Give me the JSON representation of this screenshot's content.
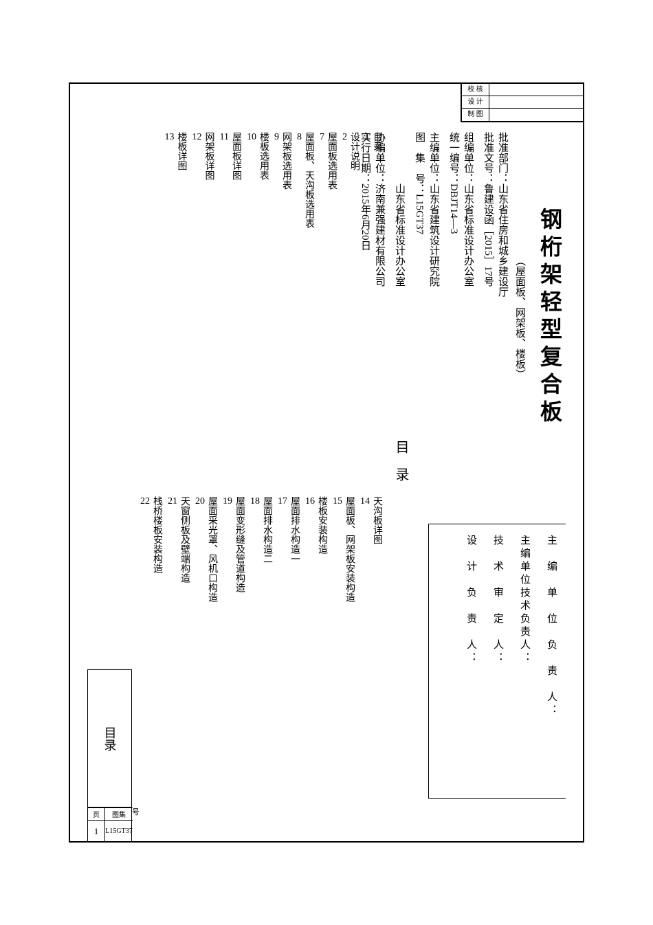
{
  "approval": {
    "row1_label": "校   核",
    "row2_label": "设   计",
    "row3_label": "制   图"
  },
  "title": {
    "main": "钢桁架轻型复合板",
    "sub": "（屋面板、网架板、楼板）"
  },
  "info": {
    "dept_label": "批准部门：",
    "dept_val": "山东省住房和城乡建设厅",
    "doc_label": "批准文号：",
    "doc_val": "鲁建设函［2015］17号",
    "org_label": "组编单位：",
    "org_val": "山东省标准设计办公室",
    "unicode_label": "统一编号：",
    "unicode_val": "DBJT14—3",
    "main_label": "主编单位：",
    "main_val1": "山东省建筑设计研究院",
    "main_val2": "山东省标准设计办公室",
    "atlas_label": "图　集　号：",
    "atlas_val": "L15GT37",
    "coop_label": "协编单位：",
    "coop_val": "济南兼强建材有限公司",
    "date_label": "实行日期：",
    "date_val": "2015年6月20日"
  },
  "sig": {
    "s1": "主　编　单　位　负　责　人：",
    "s2": "主编单位技术负责人：",
    "s3": "技　术　审　定　人：",
    "s4": "设　计　负　责　人："
  },
  "toc_heading": "目录",
  "toc": {
    "left": [
      {
        "label": "目录",
        "page": "1"
      },
      {
        "label": "设计说明",
        "page": "2"
      },
      {
        "label": "屋面板选用表",
        "page": "7"
      },
      {
        "label": "屋面板、天沟板选用表",
        "page": "8"
      },
      {
        "label": "网架板选用表",
        "page": "9"
      },
      {
        "label": "楼板选用表",
        "page": "10"
      },
      {
        "label": "屋面板详图",
        "page": "11"
      },
      {
        "label": "网架板详图",
        "page": "12"
      },
      {
        "label": "楼板详图",
        "page": "13"
      }
    ],
    "right": [
      {
        "label": "天沟板详图",
        "page": "14"
      },
      {
        "label": "屋面板、网架板安装构造",
        "page": "15"
      },
      {
        "label": "楼板安装构造",
        "page": "16"
      },
      {
        "label": "屋面排水构造一",
        "page": "17"
      },
      {
        "label": "屋面排水构造二",
        "page": "18"
      },
      {
        "label": "屋面变形缝及管道构造",
        "page": "19"
      },
      {
        "label": "屋面采光罩、风机口构造",
        "page": "20"
      },
      {
        "label": "天窗侧板及壁端构造",
        "page": "21"
      },
      {
        "label": "栈桥楼板安装构造",
        "page": "22"
      }
    ]
  },
  "footer": {
    "section_label": "目录",
    "page_hdr": "页",
    "atlas_hdr": "图集",
    "hao": "号",
    "page_no": "1",
    "atlas_no": "L15GT37"
  },
  "colors": {
    "border": "#000000",
    "text": "#000000",
    "bg": "#ffffff"
  }
}
